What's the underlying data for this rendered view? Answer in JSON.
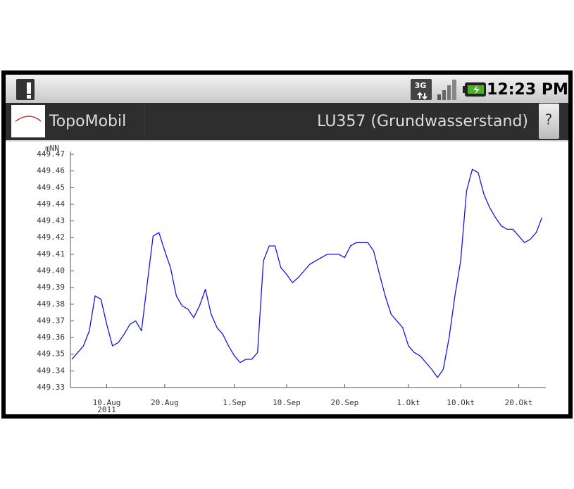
{
  "status_bar": {
    "time": "12:23 PM"
  },
  "app_bar": {
    "app_name": "TopoMobil",
    "screen_title": "LU357 (Grundwasserstand)",
    "help_button": "?"
  },
  "chart_data": {
    "type": "line",
    "y_label": "mNN",
    "year_label": "2011",
    "x": [
      "2011-08-04",
      "2011-08-05",
      "2011-08-06",
      "2011-08-07",
      "2011-08-08",
      "2011-08-09",
      "2011-08-10",
      "2011-08-11",
      "2011-08-12",
      "2011-08-13",
      "2011-08-14",
      "2011-08-15",
      "2011-08-16",
      "2011-08-17",
      "2011-08-18",
      "2011-08-19",
      "2011-08-20",
      "2011-08-21",
      "2011-08-22",
      "2011-08-23",
      "2011-08-24",
      "2011-08-25",
      "2011-08-26",
      "2011-08-27",
      "2011-08-28",
      "2011-08-29",
      "2011-08-30",
      "2011-08-31",
      "2011-09-01",
      "2011-09-02",
      "2011-09-03",
      "2011-09-04",
      "2011-09-05",
      "2011-09-06",
      "2011-09-07",
      "2011-09-08",
      "2011-09-09",
      "2011-09-10",
      "2011-09-11",
      "2011-09-12",
      "2011-09-13",
      "2011-09-14",
      "2011-09-15",
      "2011-09-16",
      "2011-09-17",
      "2011-09-18",
      "2011-09-19",
      "2011-09-20",
      "2011-09-21",
      "2011-09-22",
      "2011-09-23",
      "2011-09-24",
      "2011-09-25",
      "2011-09-26",
      "2011-09-27",
      "2011-09-28",
      "2011-09-29",
      "2011-09-30",
      "2011-10-01",
      "2011-10-02",
      "2011-10-03",
      "2011-10-04",
      "2011-10-05",
      "2011-10-06",
      "2011-10-07",
      "2011-10-08",
      "2011-10-09",
      "2011-10-10",
      "2011-10-11",
      "2011-10-12",
      "2011-10-13",
      "2011-10-14",
      "2011-10-15",
      "2011-10-16",
      "2011-10-17",
      "2011-10-18",
      "2011-10-19",
      "2011-10-20",
      "2011-10-21",
      "2011-10-22",
      "2011-10-23",
      "2011-10-24"
    ],
    "series": [
      {
        "name": "LU357",
        "color": "#1414e6",
        "values": [
          449.347,
          449.351,
          449.355,
          449.364,
          449.385,
          449.383,
          449.368,
          449.355,
          449.357,
          449.362,
          449.368,
          449.37,
          449.364,
          449.393,
          449.421,
          449.423,
          449.412,
          449.402,
          449.385,
          449.379,
          449.377,
          449.372,
          449.379,
          449.389,
          449.374,
          449.366,
          449.362,
          449.355,
          449.349,
          449.345,
          449.347,
          449.347,
          449.351,
          449.406,
          449.415,
          449.415,
          449.402,
          449.398,
          449.393,
          449.396,
          449.4,
          449.404,
          449.406,
          449.408,
          449.41,
          449.41,
          449.41,
          449.408,
          449.415,
          449.417,
          449.417,
          449.417,
          449.412,
          449.398,
          449.385,
          449.374,
          449.37,
          449.366,
          449.355,
          449.351,
          449.349,
          449.345,
          449.341,
          449.336,
          449.341,
          449.36,
          449.385,
          449.406,
          449.448,
          449.461,
          449.459,
          449.446,
          449.438,
          449.432,
          449.427,
          449.425,
          449.425,
          449.421,
          449.417,
          449.419,
          449.423,
          449.432
        ]
      }
    ],
    "xlim": [
      "2011-08-03T18:00:00Z",
      "2011-10-24T16:00:00Z"
    ],
    "xticks": [
      {
        "value": "2011-08-10",
        "label": "10.Aug"
      },
      {
        "value": "2011-08-20",
        "label": "20.Aug"
      },
      {
        "value": "2011-09-01",
        "label": "1.Sep"
      },
      {
        "value": "2011-09-10",
        "label": "10.Sep"
      },
      {
        "value": "2011-09-20",
        "label": "20.Sep"
      },
      {
        "value": "2011-10-01",
        "label": "1.Okt"
      },
      {
        "value": "2011-10-10",
        "label": "10.Okt"
      },
      {
        "value": "2011-10-20",
        "label": "20.Okt"
      }
    ],
    "ylim": [
      449.33,
      449.47
    ],
    "yticks": [
      449.33,
      449.34,
      449.35,
      449.36,
      449.37,
      449.38,
      449.39,
      {
        "value": 449.4,
        "label": "449.40"
      },
      449.41,
      449.42,
      449.43,
      449.44,
      449.45,
      449.46,
      449.47
    ],
    "grid": false
  }
}
